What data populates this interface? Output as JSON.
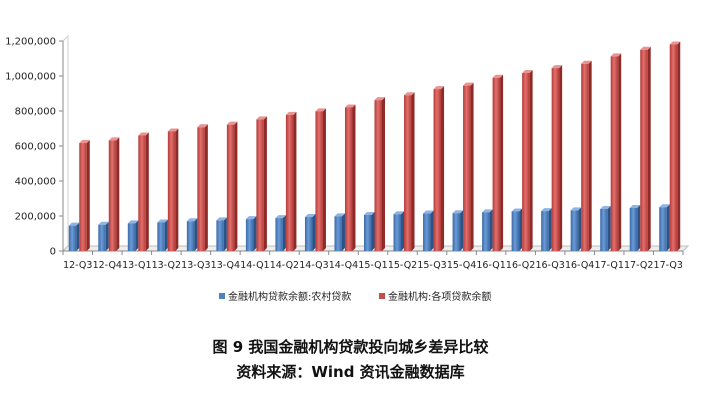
{
  "chart_data": {
    "type": "bar",
    "title": "",
    "xlabel": "",
    "ylabel": "",
    "ylim": [
      0,
      1200000
    ],
    "yticks": [
      "0",
      "200,000",
      "400,000",
      "600,000",
      "800,000",
      "1,000,000",
      "1,200,000"
    ],
    "grid": false,
    "legend_position": "bottom",
    "categories": [
      "12-Q3",
      "12-Q4",
      "13-Q1",
      "13-Q2",
      "13-Q3",
      "13-Q4",
      "14-Q1",
      "14-Q2",
      "14-Q3",
      "14-Q4",
      "15-Q1",
      "15-Q2",
      "15-Q3",
      "15-Q4",
      "16-Q1",
      "16-Q2",
      "16-Q3",
      "16-Q4",
      "17-Q1",
      "17-Q2",
      "17-Q3"
    ],
    "series": [
      {
        "name": "金融机构贷款余额:农村贷款",
        "color": "#4F81BD",
        "values": [
          145000,
          150000,
          158000,
          163000,
          170000,
          175000,
          182000,
          188000,
          194000,
          198000,
          206000,
          210000,
          214000,
          216000,
          221000,
          226000,
          228000,
          232000,
          240000,
          246000,
          250000
        ]
      },
      {
        "name": "金融机构:各项贷款余额",
        "color": "#C0504D",
        "values": [
          617000,
          632000,
          660000,
          683000,
          707000,
          722000,
          752000,
          778000,
          798000,
          820000,
          862000,
          890000,
          925000,
          945000,
          990000,
          1017000,
          1045000,
          1070000,
          1112000,
          1150000,
          1180000
        ]
      }
    ]
  },
  "caption": {
    "line1": "图 9  我国金融机构贷款投向城乡差异比较",
    "line2": "资料来源：Wind 资讯金融数据库"
  }
}
